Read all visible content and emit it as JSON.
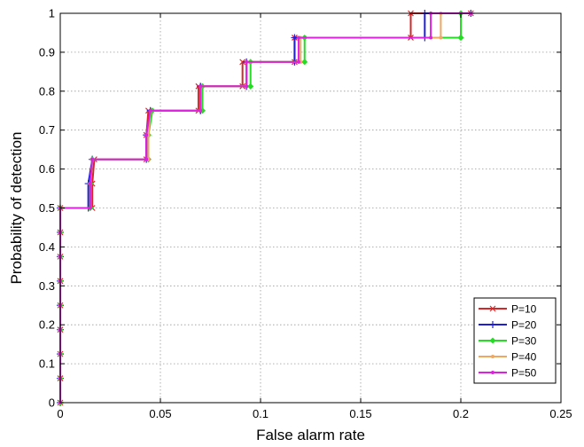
{
  "chart_data": {
    "type": "line",
    "title": "",
    "xlabel": "False alarm rate",
    "ylabel": "Probability of detection",
    "xlim": [
      0,
      0.25
    ],
    "ylim": [
      0,
      1
    ],
    "xticks": [
      "0",
      "0.05",
      "0.1",
      "0.15",
      "0.2",
      "0.25"
    ],
    "yticks": [
      "0",
      "0.1",
      "0.2",
      "0.3",
      "0.4",
      "0.5",
      "0.6",
      "0.7",
      "0.8",
      "0.9",
      "1"
    ],
    "grid": true,
    "legend_position": "bottom-right",
    "series": [
      {
        "name": "P=10",
        "color": "#d62728",
        "marker": "x",
        "x": [
          0,
          0,
          0,
          0,
          0,
          0,
          0,
          0,
          0,
          0.016,
          0.016,
          0.017,
          0.043,
          0.043,
          0.044,
          0.069,
          0.069,
          0.091,
          0.091,
          0.117,
          0.117,
          0.175,
          0.175,
          0.205
        ],
        "y": [
          0,
          0.0625,
          0.125,
          0.1875,
          0.25,
          0.3125,
          0.375,
          0.4375,
          0.5,
          0.5,
          0.5625,
          0.625,
          0.625,
          0.6875,
          0.75,
          0.75,
          0.8125,
          0.8125,
          0.875,
          0.875,
          0.9375,
          0.9375,
          1,
          1
        ]
      },
      {
        "name": "P=20",
        "color": "#1f1fd6",
        "marker": "+",
        "x": [
          0,
          0,
          0,
          0,
          0,
          0,
          0,
          0,
          0,
          0.014,
          0.014,
          0.016,
          0.043,
          0.043,
          0.045,
          0.07,
          0.07,
          0.093,
          0.093,
          0.117,
          0.117,
          0.182,
          0.182,
          0.205
        ],
        "y": [
          0,
          0.0625,
          0.125,
          0.1875,
          0.25,
          0.3125,
          0.375,
          0.4375,
          0.5,
          0.5,
          0.5625,
          0.625,
          0.625,
          0.6875,
          0.75,
          0.75,
          0.8125,
          0.8125,
          0.875,
          0.875,
          0.9375,
          0.9375,
          1,
          1
        ]
      },
      {
        "name": "P=30",
        "color": "#22dd22",
        "marker": "diamond",
        "x": [
          0,
          0,
          0,
          0,
          0,
          0,
          0,
          0,
          0,
          0.015,
          0.015,
          0.016,
          0.044,
          0.044,
          0.046,
          0.071,
          0.071,
          0.095,
          0.095,
          0.122,
          0.122,
          0.2,
          0.2,
          0.2
        ],
        "y": [
          0,
          0.0625,
          0.125,
          0.1875,
          0.25,
          0.3125,
          0.375,
          0.4375,
          0.5,
          0.5,
          0.5625,
          0.625,
          0.625,
          0.6875,
          0.75,
          0.75,
          0.8125,
          0.8125,
          0.875,
          0.875,
          0.9375,
          0.9375,
          0.9375,
          1
        ]
      },
      {
        "name": "P=40",
        "color": "#f0a860",
        "marker": "dot",
        "x": [
          0,
          0,
          0,
          0,
          0,
          0,
          0,
          0,
          0,
          0.015,
          0.015,
          0.016,
          0.044,
          0.044,
          0.045,
          0.07,
          0.07,
          0.093,
          0.093,
          0.12,
          0.12,
          0.19,
          0.19,
          0.205
        ],
        "y": [
          0,
          0.0625,
          0.125,
          0.1875,
          0.25,
          0.3125,
          0.375,
          0.4375,
          0.5,
          0.5,
          0.5625,
          0.625,
          0.625,
          0.6875,
          0.75,
          0.75,
          0.8125,
          0.8125,
          0.875,
          0.875,
          0.9375,
          0.9375,
          1,
          1
        ]
      },
      {
        "name": "P=50",
        "color": "#e020e0",
        "marker": "dot",
        "x": [
          0,
          0,
          0,
          0,
          0,
          0,
          0,
          0,
          0,
          0.015,
          0.015,
          0.016,
          0.043,
          0.043,
          0.045,
          0.07,
          0.07,
          0.093,
          0.093,
          0.119,
          0.119,
          0.185,
          0.185,
          0.205
        ],
        "y": [
          0,
          0.0625,
          0.125,
          0.1875,
          0.25,
          0.3125,
          0.375,
          0.4375,
          0.5,
          0.5,
          0.5625,
          0.625,
          0.625,
          0.6875,
          0.75,
          0.75,
          0.8125,
          0.8125,
          0.875,
          0.875,
          0.9375,
          0.9375,
          1,
          1
        ]
      }
    ]
  }
}
